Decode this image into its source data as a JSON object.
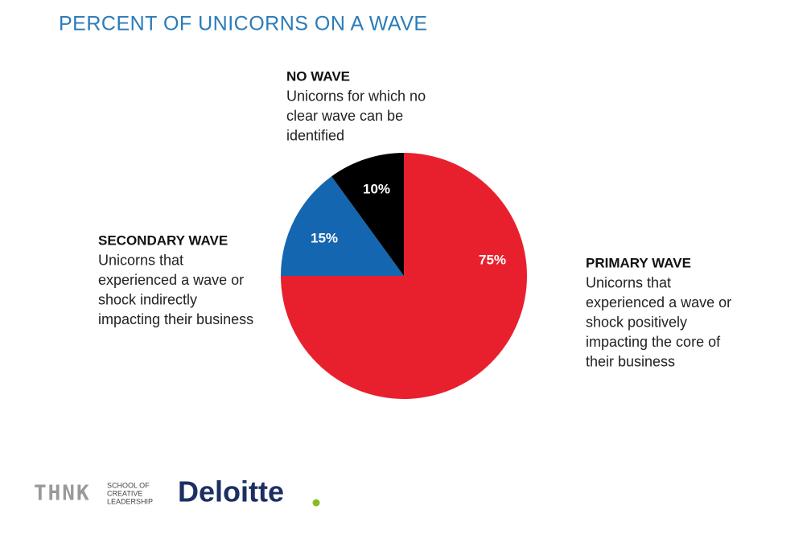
{
  "chart_data": {
    "type": "pie",
    "title": "PERCENT OF UNICORNS ON A WAVE",
    "categories": [
      "PRIMARY WAVE",
      "SECONDARY WAVE",
      "NO WAVE"
    ],
    "values": [
      75,
      15,
      10
    ],
    "value_labels": [
      "75%",
      "15%",
      "10%"
    ],
    "colors": [
      "#e8202e",
      "#1566b0",
      "#000000"
    ],
    "descriptions": [
      [
        "Unicorns that",
        "experienced  a wave or",
        "shock positively",
        "impacting the core of",
        "their business"
      ],
      [
        "Unicorns that",
        "experienced  a wave or",
        "shock indirectly",
        "impacting their business"
      ],
      [
        "Unicorns for which no",
        "clear wave can be",
        "identified"
      ]
    ]
  },
  "logos": {
    "thnk": "THNK",
    "thnk_subtitle": [
      "SCHOOL OF",
      "CREATIVE",
      "LEADERSHIP"
    ],
    "deloitte": "Deloitte"
  }
}
